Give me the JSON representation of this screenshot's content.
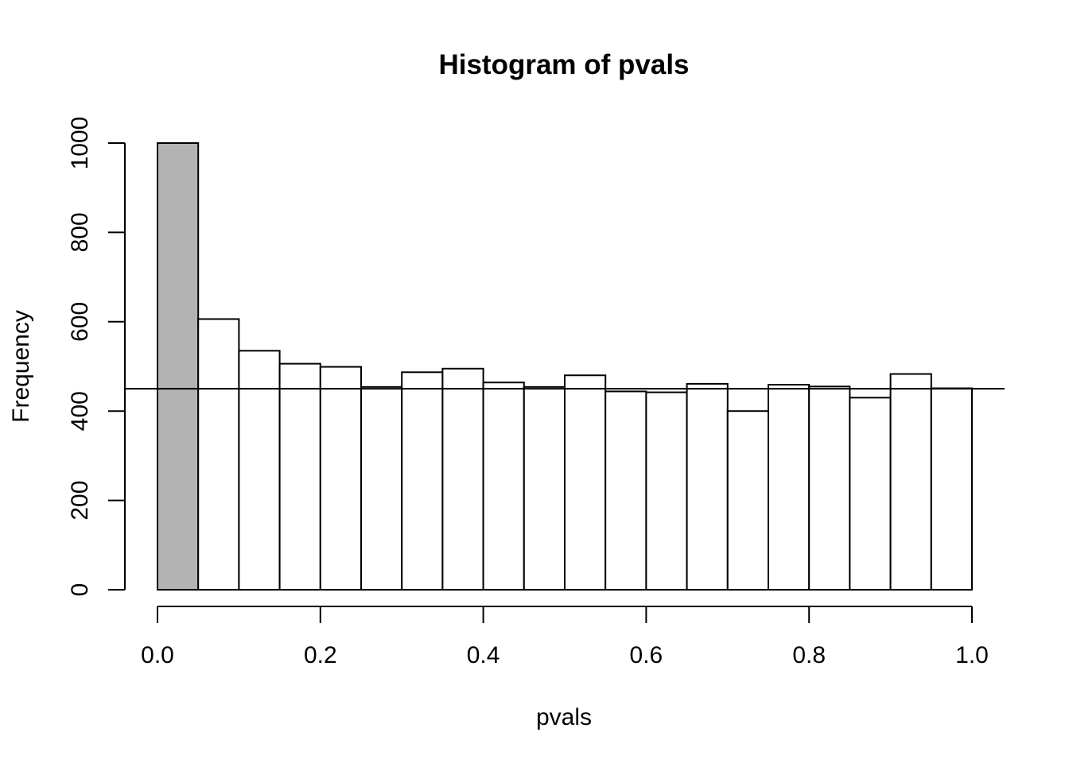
{
  "chart_data": {
    "type": "bar",
    "title": "Histogram of pvals",
    "xlabel": "pvals",
    "ylabel": "Frequency",
    "bin_edges": [
      0.0,
      0.05,
      0.1,
      0.15,
      0.2,
      0.25,
      0.3,
      0.35,
      0.4,
      0.45,
      0.5,
      0.55,
      0.6,
      0.65,
      0.7,
      0.75,
      0.8,
      0.85,
      0.9,
      0.95,
      1.0
    ],
    "values": [
      1000,
      606,
      535,
      506,
      499,
      454,
      487,
      495,
      464,
      454,
      480,
      444,
      442,
      461,
      400,
      459,
      455,
      430,
      483,
      451
    ],
    "highlight_bins": [
      0
    ],
    "highlight_color": "#b3b3b3",
    "bar_color": "#ffffff",
    "reference_line_y": 450,
    "xlim": [
      0.0,
      1.0
    ],
    "ylim": [
      0,
      1000
    ],
    "x_ticks": [
      "0.0",
      "0.2",
      "0.4",
      "0.6",
      "0.8",
      "1.0"
    ],
    "y_ticks": [
      "0",
      "200",
      "400",
      "600",
      "800",
      "1000"
    ],
    "grid": false,
    "legend": "none"
  }
}
